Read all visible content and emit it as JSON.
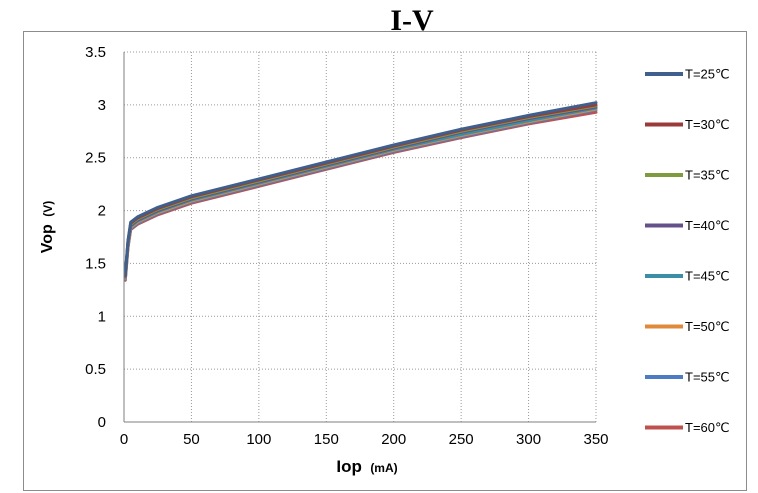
{
  "chart_data": {
    "type": "line",
    "title": "I-V",
    "xlabel": "Iop",
    "xlabel_unit": "(mA)",
    "ylabel": "Vop",
    "ylabel_unit": "(V)",
    "xlim": [
      0,
      350
    ],
    "ylim": [
      0,
      3.5
    ],
    "xticks": [
      "0",
      "50",
      "100",
      "150",
      "200",
      "250",
      "300",
      "350"
    ],
    "yticks": [
      "0",
      "0.5",
      "1",
      "1.5",
      "2",
      "2.5",
      "3",
      "3.5"
    ],
    "grid": true,
    "legend_position": "right",
    "series": [
      {
        "name": "T=25℃",
        "color": "#3f5f8c",
        "x": [
          1,
          3,
          5,
          10,
          25,
          50,
          100,
          150,
          200,
          250,
          300,
          350
        ],
        "y": [
          1.4,
          1.72,
          1.89,
          1.94,
          2.03,
          2.14,
          2.3,
          2.46,
          2.62,
          2.77,
          2.9,
          3.02
        ]
      },
      {
        "name": "T=30℃",
        "color": "#9b3a3a",
        "x": [
          1,
          3,
          5,
          10,
          25,
          50,
          100,
          150,
          200,
          250,
          300,
          350
        ],
        "y": [
          1.39,
          1.71,
          1.88,
          1.93,
          2.02,
          2.13,
          2.29,
          2.45,
          2.61,
          2.76,
          2.89,
          3.0
        ]
      },
      {
        "name": "T=35℃",
        "color": "#7f9a3f",
        "x": [
          1,
          3,
          5,
          10,
          25,
          50,
          100,
          150,
          200,
          250,
          300,
          350
        ],
        "y": [
          1.39,
          1.7,
          1.87,
          1.92,
          2.01,
          2.12,
          2.28,
          2.44,
          2.6,
          2.75,
          2.88,
          2.99
        ]
      },
      {
        "name": "T=40℃",
        "color": "#64508a",
        "x": [
          1,
          3,
          5,
          10,
          25,
          50,
          100,
          150,
          200,
          250,
          300,
          350
        ],
        "y": [
          1.38,
          1.69,
          1.86,
          1.91,
          2.0,
          2.11,
          2.27,
          2.43,
          2.59,
          2.74,
          2.87,
          2.98
        ]
      },
      {
        "name": "T=45℃",
        "color": "#3a8fa6",
        "x": [
          1,
          3,
          5,
          10,
          25,
          50,
          100,
          150,
          200,
          250,
          300,
          350
        ],
        "y": [
          1.37,
          1.68,
          1.85,
          1.9,
          1.99,
          2.1,
          2.26,
          2.42,
          2.58,
          2.72,
          2.85,
          2.97
        ]
      },
      {
        "name": "T=50℃",
        "color": "#e0893a",
        "x": [
          1,
          3,
          5,
          10,
          25,
          50,
          100,
          150,
          200,
          250,
          300,
          350
        ],
        "y": [
          1.36,
          1.67,
          1.84,
          1.89,
          1.98,
          2.09,
          2.25,
          2.41,
          2.57,
          2.71,
          2.84,
          2.96
        ]
      },
      {
        "name": "T=55℃",
        "color": "#4c7cc4",
        "x": [
          1,
          3,
          5,
          10,
          25,
          50,
          100,
          150,
          200,
          250,
          300,
          350
        ],
        "y": [
          1.35,
          1.66,
          1.83,
          1.88,
          1.97,
          2.08,
          2.24,
          2.4,
          2.56,
          2.7,
          2.83,
          2.95
        ]
      },
      {
        "name": "T=60℃",
        "color": "#c0504d",
        "x": [
          1,
          3,
          5,
          10,
          25,
          50,
          100,
          150,
          200,
          250,
          300,
          350
        ],
        "y": [
          1.34,
          1.65,
          1.82,
          1.87,
          1.96,
          2.07,
          2.23,
          2.39,
          2.55,
          2.69,
          2.82,
          2.93
        ]
      }
    ]
  }
}
